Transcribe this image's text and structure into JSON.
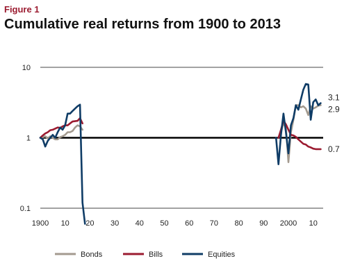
{
  "figure_label": "Figure 1",
  "title": "Cumulative real returns from 1900 to 2013",
  "chart_data": {
    "type": "line",
    "title": "Cumulative real returns from 1900 to 2013",
    "xlabel": "",
    "ylabel": "",
    "y_scale": "log",
    "ylim": [
      0.1,
      10
    ],
    "xlim": [
      1900,
      2014
    ],
    "y_ticks": [
      {
        "value": 10,
        "label": "10"
      },
      {
        "value": 1,
        "label": "1"
      },
      {
        "value": 0.1,
        "label": "0.1"
      }
    ],
    "x_ticks": [
      {
        "value": 1900,
        "label": "1900"
      },
      {
        "value": 1910,
        "label": "10"
      },
      {
        "value": 1920,
        "label": "20"
      },
      {
        "value": 1930,
        "label": "30"
      },
      {
        "value": 1940,
        "label": "40"
      },
      {
        "value": 1950,
        "label": "50"
      },
      {
        "value": 1960,
        "label": "60"
      },
      {
        "value": 1970,
        "label": "70"
      },
      {
        "value": 1980,
        "label": "80"
      },
      {
        "value": 1990,
        "label": "90"
      },
      {
        "value": 2000,
        "label": "2000"
      },
      {
        "value": 2010,
        "label": "10"
      }
    ],
    "reference_line": 1,
    "grid": false,
    "legend_position": "bottom",
    "series": [
      {
        "name": "Bonds",
        "color": "#a39a8f",
        "end_label": "2.9",
        "segments": [
          [
            [
              1900,
              1.0
            ],
            [
              1901,
              1.02
            ],
            [
              1902,
              1.05
            ],
            [
              1903,
              0.98
            ],
            [
              1904,
              1.05
            ],
            [
              1905,
              1.0
            ],
            [
              1906,
              0.95
            ],
            [
              1907,
              0.95
            ],
            [
              1908,
              1.02
            ],
            [
              1909,
              1.05
            ],
            [
              1910,
              1.1
            ],
            [
              1911,
              1.2
            ],
            [
              1912,
              1.2
            ],
            [
              1913,
              1.25
            ],
            [
              1914,
              1.4
            ],
            [
              1915,
              1.5
            ],
            [
              1916,
              1.45
            ],
            [
              1917,
              1.3
            ]
          ],
          [
            [
              1996,
              1.0
            ],
            [
              1997,
              1.2
            ],
            [
              1998,
              1.6
            ],
            [
              1999,
              1.4
            ],
            [
              2000,
              0.45
            ],
            [
              2001,
              1.2
            ],
            [
              2002,
              1.8
            ],
            [
              2003,
              2.9
            ],
            [
              2004,
              2.9
            ],
            [
              2005,
              2.7
            ],
            [
              2006,
              2.8
            ],
            [
              2007,
              2.6
            ],
            [
              2008,
              2.1
            ],
            [
              2009,
              2.8
            ],
            [
              2010,
              2.6
            ],
            [
              2011,
              2.7
            ],
            [
              2012,
              2.85
            ],
            [
              2013,
              2.9
            ]
          ]
        ]
      },
      {
        "name": "Bills",
        "color": "#9b1b30",
        "end_label": "0.7",
        "segments": [
          [
            [
              1900,
              1.0
            ],
            [
              1901,
              1.08
            ],
            [
              1902,
              1.15
            ],
            [
              1903,
              1.2
            ],
            [
              1904,
              1.28
            ],
            [
              1905,
              1.3
            ],
            [
              1906,
              1.35
            ],
            [
              1907,
              1.4
            ],
            [
              1908,
              1.38
            ],
            [
              1909,
              1.45
            ],
            [
              1910,
              1.5
            ],
            [
              1911,
              1.5
            ],
            [
              1912,
              1.6
            ],
            [
              1913,
              1.7
            ],
            [
              1914,
              1.72
            ],
            [
              1915,
              1.74
            ],
            [
              1916,
              1.9
            ],
            [
              1917,
              1.6
            ]
          ],
          [
            [
              1996,
              1.0
            ],
            [
              1997,
              1.3
            ],
            [
              1998,
              1.75
            ],
            [
              1999,
              1.55
            ],
            [
              2000,
              1.3
            ],
            [
              2001,
              1.1
            ],
            [
              2002,
              1.08
            ],
            [
              2003,
              1.03
            ],
            [
              2004,
              0.95
            ],
            [
              2005,
              0.88
            ],
            [
              2006,
              0.82
            ],
            [
              2007,
              0.8
            ],
            [
              2008,
              0.75
            ],
            [
              2009,
              0.73
            ],
            [
              2010,
              0.7
            ],
            [
              2011,
              0.69
            ],
            [
              2012,
              0.69
            ],
            [
              2013,
              0.69
            ]
          ]
        ]
      },
      {
        "name": "Equities",
        "color": "#0f3c66",
        "end_label": "3.1",
        "segments": [
          [
            [
              1900,
              1.0
            ],
            [
              1901,
              0.95
            ],
            [
              1902,
              0.75
            ],
            [
              1903,
              0.9
            ],
            [
              1904,
              1.0
            ],
            [
              1905,
              1.1
            ],
            [
              1906,
              1.0
            ],
            [
              1907,
              1.2
            ],
            [
              1908,
              1.4
            ],
            [
              1909,
              1.3
            ],
            [
              1910,
              1.5
            ],
            [
              1911,
              2.2
            ],
            [
              1912,
              2.2
            ],
            [
              1913,
              2.4
            ],
            [
              1914,
              2.6
            ],
            [
              1915,
              2.8
            ],
            [
              1916,
              2.95
            ],
            [
              1917,
              0.12
            ],
            [
              1918,
              0.06
            ]
          ],
          [
            [
              1995,
              1.0
            ],
            [
              1996,
              0.42
            ],
            [
              1997,
              1.1
            ],
            [
              1998,
              2.2
            ],
            [
              1999,
              1.2
            ],
            [
              2000,
              0.6
            ],
            [
              2001,
              1.5
            ],
            [
              2002,
              1.9
            ],
            [
              2003,
              2.9
            ],
            [
              2004,
              2.5
            ],
            [
              2005,
              3.5
            ],
            [
              2006,
              4.8
            ],
            [
              2007,
              5.8
            ],
            [
              2008,
              5.7
            ],
            [
              2009,
              1.8
            ],
            [
              2010,
              3.2
            ],
            [
              2011,
              3.5
            ],
            [
              2012,
              2.9
            ],
            [
              2013,
              3.1
            ]
          ]
        ]
      }
    ]
  }
}
